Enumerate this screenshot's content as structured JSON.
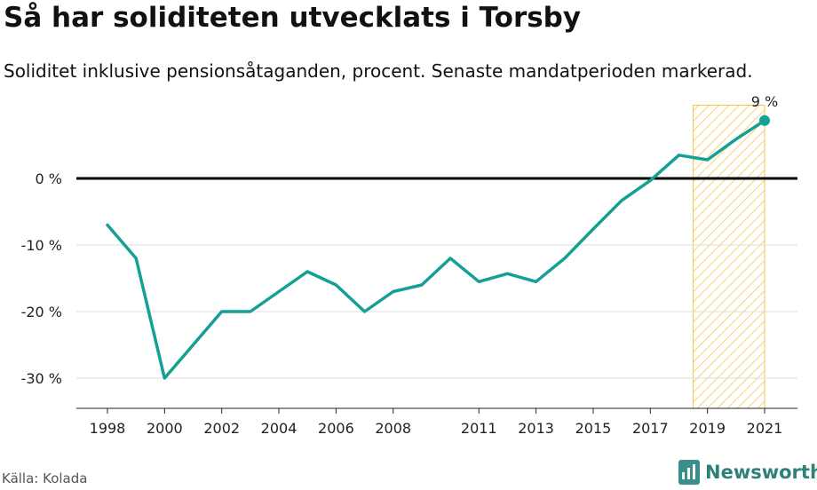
{
  "title": "Så har soliditeten utvecklats i Torsby",
  "subtitle": "Soliditet inklusive pensionsåtaganden, procent. Senaste mandatperioden markerad.",
  "source": "Källa: Kolada",
  "brand": "Newsworthy",
  "colors": {
    "line": "#14a094",
    "highlight": "#f6c445",
    "zero_line": "#000000",
    "grid": "#dddddd"
  },
  "chart_data": {
    "type": "line",
    "title": "Så har soliditeten utvecklats i Torsby",
    "subtitle": "Soliditet inklusive pensionsåtaganden, procent. Senaste mandatperioden markerad.",
    "xlabel": "",
    "ylabel": "",
    "x": [
      1998,
      1999,
      2000,
      2001,
      2002,
      2003,
      2004,
      2005,
      2006,
      2007,
      2008,
      2009,
      2010,
      2011,
      2012,
      2013,
      2014,
      2015,
      2016,
      2017,
      2018,
      2019,
      2020,
      2021
    ],
    "values": [
      -7,
      -12,
      -30,
      -25,
      -20,
      -20,
      -17,
      -14,
      -16,
      -20,
      -17,
      -16,
      -12,
      -15.5,
      -14.3,
      -15.5,
      -12,
      -7.6,
      -3.3,
      -0.3,
      3.5,
      2.8,
      5.9,
      8.7
    ],
    "ylim": [
      -35,
      11
    ],
    "xlim": [
      1998,
      2021
    ],
    "y_ticks": [
      0,
      -10,
      -20,
      -30
    ],
    "y_tick_labels": [
      "0 %",
      "-10 %",
      "-20 %",
      "-30 %"
    ],
    "x_ticks": [
      1998,
      2000,
      2002,
      2004,
      2006,
      2008,
      2011,
      2013,
      2015,
      2017,
      2019,
      2021
    ],
    "x_tick_labels": [
      "1998",
      "2000",
      "2002",
      "2004",
      "2006",
      "2008",
      "2011",
      "2013",
      "2015",
      "2017",
      "2019",
      "2021"
    ],
    "highlight_range": [
      2018.5,
      2021
    ],
    "end_label": "9 %",
    "grid": true,
    "legend": "none"
  }
}
